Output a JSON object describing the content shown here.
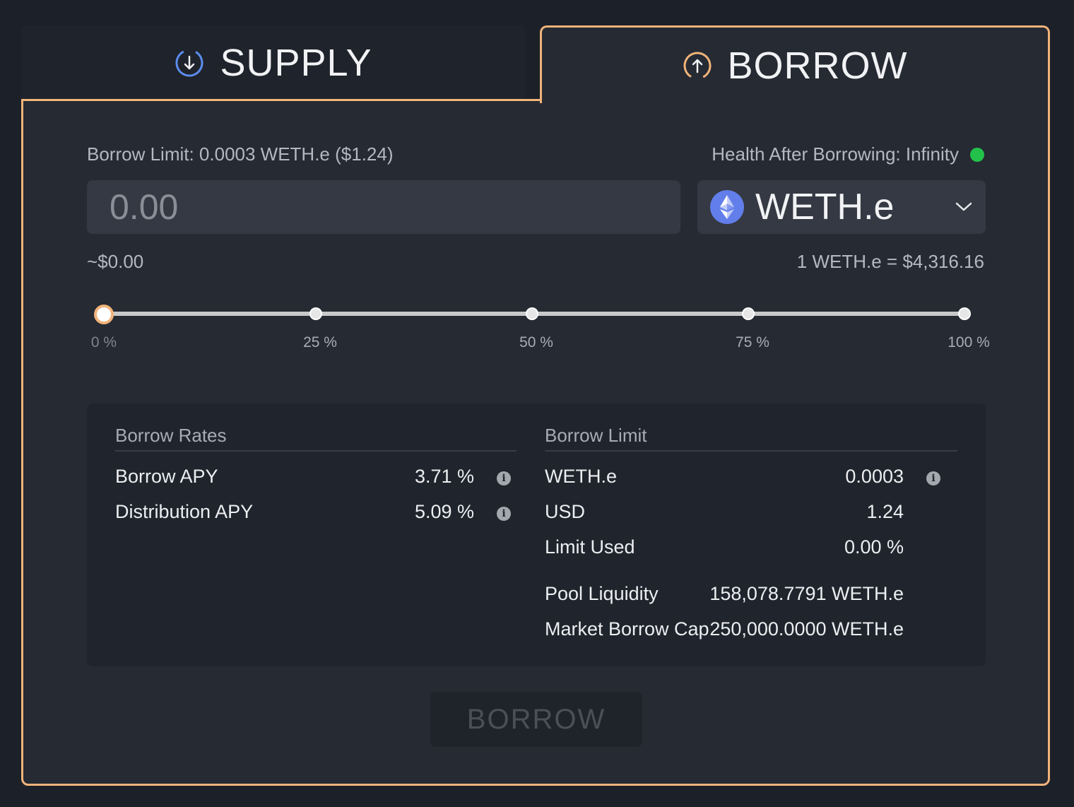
{
  "tabs": {
    "supply": {
      "label": "SUPPLY",
      "icon": "arrow-down-circle-icon",
      "color": "#5b8dee"
    },
    "borrow": {
      "label": "BORROW",
      "icon": "arrow-up-circle-icon",
      "color": "#f1b37a",
      "active": true
    }
  },
  "form": {
    "borrow_limit_text": "Borrow Limit: 0.0003 WETH.e ($1.24)",
    "health_text": "Health After Borrowing: Infinity",
    "health_status_color": "#22c24a",
    "amount_placeholder": "0.00",
    "asset": {
      "name": "WETH.e",
      "icon": "ethereum-icon"
    },
    "usd_value": "~$0.00",
    "exchange_rate": "1 WETH.e = $4,316.16"
  },
  "slider": {
    "value_fraction": 0,
    "stops": [
      "0 %",
      "25 %",
      "50 %",
      "75 %",
      "100 %"
    ]
  },
  "details": {
    "rates": {
      "header": "Borrow Rates",
      "rows": [
        {
          "label": "Borrow APY",
          "value": "3.71 %"
        },
        {
          "label": "Distribution APY",
          "value": "5.09 %"
        }
      ]
    },
    "limit": {
      "header": "Borrow Limit",
      "rows": [
        {
          "label": "WETH.e",
          "value": "0.0003"
        },
        {
          "label": "USD",
          "value": "1.24"
        },
        {
          "label": "Limit Used",
          "value": "0.00 %"
        },
        {
          "label": "Pool Liquidity",
          "value": "158,078.7791 WETH.e"
        },
        {
          "label": "Market Borrow Cap",
          "value": "250,000.0000 WETH.e"
        }
      ]
    }
  },
  "submit_label": "BORROW",
  "accent_color": "#f1b37a"
}
